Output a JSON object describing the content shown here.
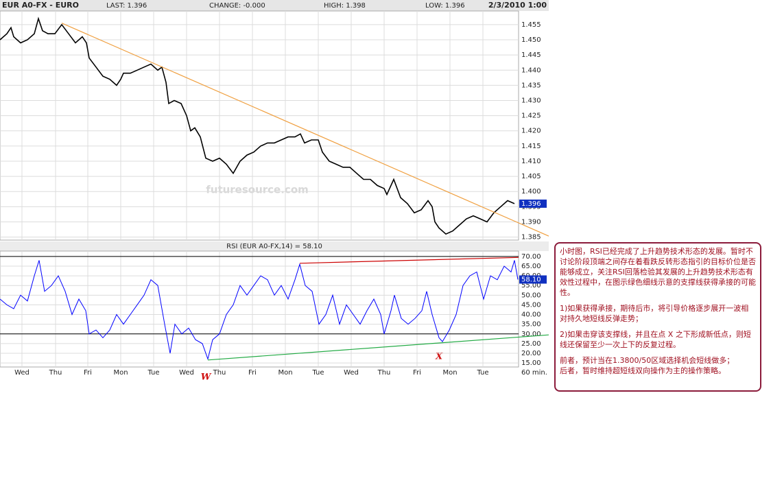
{
  "header": {
    "symbol": "EUR A0-FX - EURO",
    "last": "LAST: 1.396",
    "change": "CHANGE: -0.000",
    "high": "HIGH: 1.398",
    "low": "LOW: 1.396",
    "datetime": "2/3/2010 1:00"
  },
  "chart_data": [
    {
      "type": "line",
      "watermark": "futuresource.com",
      "x": [
        0,
        5,
        8,
        10,
        15,
        20,
        25,
        28,
        31,
        35,
        40,
        45,
        50,
        55,
        60,
        63,
        65,
        70,
        75,
        80,
        85,
        88,
        90,
        95,
        100,
        105,
        110,
        115,
        118,
        121,
        123,
        127,
        132,
        136,
        139,
        142,
        146,
        150,
        155,
        160,
        165,
        170,
        175,
        180,
        185,
        190,
        195,
        200,
        205,
        210,
        215,
        219,
        222,
        227,
        232,
        235,
        240,
        245,
        250,
        255,
        260,
        265,
        270,
        275,
        280,
        282,
        287,
        292,
        297,
        302,
        307,
        312,
        315,
        317,
        320,
        325,
        330,
        335,
        340,
        345,
        350,
        355,
        360,
        365,
        370,
        375
      ],
      "series": [
        {
          "color": "#000000",
          "values": [
            1.45,
            1.452,
            1.454,
            1.451,
            1.449,
            1.45,
            1.452,
            1.457,
            1.453,
            1.452,
            1.452,
            1.455,
            1.452,
            1.449,
            1.451,
            1.449,
            1.444,
            1.441,
            1.438,
            1.437,
            1.435,
            1.437,
            1.439,
            1.439,
            1.44,
            1.441,
            1.442,
            1.44,
            1.441,
            1.436,
            1.429,
            1.43,
            1.429,
            1.425,
            1.42,
            1.421,
            1.418,
            1.411,
            1.41,
            1.411,
            1.409,
            1.406,
            1.41,
            1.412,
            1.413,
            1.415,
            1.416,
            1.416,
            1.417,
            1.418,
            1.418,
            1.419,
            1.416,
            1.417,
            1.417,
            1.413,
            1.41,
            1.409,
            1.408,
            1.408,
            1.406,
            1.404,
            1.404,
            1.402,
            1.401,
            1.399,
            1.404,
            1.398,
            1.396,
            1.393,
            1.394,
            1.397,
            1.395,
            1.39,
            1.388,
            1.386,
            1.387,
            1.389,
            1.391,
            1.392,
            1.391,
            1.39,
            1.393,
            1.395,
            1.397,
            1.396
          ]
        }
      ],
      "last_value": 1.396,
      "xlim": [
        0,
        378
      ],
      "ylim": [
        1.384,
        1.4595
      ],
      "yticks": [
        1.385,
        {
          "value": 1.39,
          "label": "1.390"
        },
        1.395,
        {
          "value": 1.4,
          "label": "1.400"
        },
        1.405,
        {
          "value": 1.41,
          "label": "1.410"
        },
        1.415,
        {
          "value": 1.42,
          "label": "1.420"
        },
        1.425,
        {
          "value": 1.43,
          "label": "1.430"
        },
        1.435,
        {
          "value": 1.44,
          "label": "1.440"
        },
        1.445,
        {
          "value": 1.45,
          "label": "1.450"
        },
        1.455
      ],
      "grid": true,
      "trendlines": [
        {
          "color": "#f0a040",
          "x": [
            45,
            400
          ],
          "y": [
            1.4555,
            1.3853
          ]
        }
      ]
    },
    {
      "type": "line",
      "title": "RSI (EUR A0-FX,14) = 58.10",
      "x": [
        0,
        5,
        10,
        15,
        20,
        25,
        28.5,
        32.5,
        37.5,
        42.5,
        47.5,
        52.5,
        57.5,
        62.5,
        65,
        70,
        75,
        80,
        85,
        90,
        95,
        100,
        105,
        110,
        115,
        120,
        124,
        127.5,
        132.5,
        137.5,
        142.5,
        147.5,
        151.5,
        155,
        160,
        165,
        170,
        175,
        180,
        185,
        190,
        195,
        200,
        205,
        210,
        215,
        218.5,
        222.5,
        227.5,
        232.5,
        237.5,
        242.5,
        247.5,
        252.5,
        257.5,
        262.5,
        267.5,
        272.5,
        277.5,
        280,
        285,
        287.5,
        292.5,
        297.5,
        302.5,
        307.5,
        311,
        315,
        320,
        322.5,
        327.5,
        332.5,
        337.5,
        342.5,
        347.5,
        352.5,
        357.5,
        362.5,
        367.5,
        372.5,
        375,
        377.5
      ],
      "series": [
        {
          "color": "#0000ff",
          "values": [
            48,
            45,
            43,
            50,
            47,
            60,
            68,
            52,
            55,
            60,
            52,
            40,
            48,
            42,
            30,
            32,
            28,
            32,
            40,
            35,
            40,
            45,
            50,
            58,
            55,
            35,
            20,
            35,
            30,
            33,
            27,
            25,
            17,
            27,
            30,
            40,
            45,
            55,
            50,
            55,
            60,
            58,
            50,
            55,
            48,
            58,
            66,
            55,
            52,
            35,
            40,
            50,
            35,
            45,
            40,
            35,
            42,
            48,
            40,
            30,
            42,
            50,
            38,
            35,
            38,
            42,
            52,
            40,
            28,
            26,
            32,
            40,
            55,
            60,
            62,
            48,
            60,
            58,
            65,
            62,
            68,
            58.1
          ]
        }
      ],
      "last_value": {
        "value": 58.1,
        "label": "58.10"
      },
      "xlim": [
        0,
        378
      ],
      "ylim": [
        12.9,
        72.8
      ],
      "yticks": [
        {
          "value": 15,
          "label": "15.00"
        },
        {
          "value": 20,
          "label": "20.00"
        },
        {
          "value": 25,
          "label": "25.00"
        },
        {
          "value": 30,
          "label": "30.00"
        },
        {
          "value": 35,
          "label": "35.00"
        },
        {
          "value": 40,
          "label": "40.00"
        },
        {
          "value": 45,
          "label": "45.00"
        },
        {
          "value": 50,
          "label": "50.00"
        },
        {
          "value": 55,
          "label": "55.00"
        },
        {
          "value": 60,
          "label": "60.00"
        },
        {
          "value": 65,
          "label": "65.00"
        },
        {
          "value": 70,
          "label": "70.00"
        }
      ],
      "xticks": [
        {
          "value": 16,
          "label": "Wed"
        },
        {
          "value": 40.5,
          "label": "Thu"
        },
        {
          "value": 64,
          "label": "Fri"
        },
        {
          "value": 88,
          "label": "Mon"
        },
        {
          "value": 112,
          "label": "Tue"
        },
        {
          "value": 136,
          "label": "Wed"
        },
        {
          "value": 160,
          "label": "Thu"
        },
        {
          "value": 184,
          "label": "Fri"
        },
        {
          "value": 208,
          "label": "Mon"
        },
        {
          "value": 232,
          "label": "Tue"
        },
        {
          "value": 256,
          "label": "Wed"
        },
        {
          "value": 280,
          "label": "Thu"
        },
        {
          "value": 304,
          "label": "Fri"
        },
        {
          "value": 328,
          "label": "Mon"
        },
        {
          "value": 352,
          "label": "Tue"
        }
      ],
      "x_unit_label": "60 min.",
      "reference_lines": [
        30,
        70
      ],
      "grid": true,
      "trendlines": [
        {
          "color": "#cc0000",
          "x": [
            218.5,
            378
          ],
          "y": [
            66.5,
            69.5
          ]
        },
        {
          "color": "#22aa44",
          "x": [
            151.5,
            400
          ],
          "y": [
            16.5,
            29.5
          ]
        }
      ]
    }
  ],
  "markers": [
    "W",
    "X"
  ],
  "note": {
    "paragraphs": [
      "小时图，RSI已经完成了上升趋势技术形态的发展。暂时不讨论阶段顶端之间存在着看跌反转形态指引的目标价位是否能够成立，关注RSI回落检验其发展的上升趋势技术形态有效性过程中，在图示绿色细线示意的支撑线获得承接的可能性。",
      "1)如果获得承接，期待后市，将引导价格逐步展开一波相对持久地短线反弹走势；",
      "2)如果击穿该支撑线，并且在点 X 之下形成新低点，则短线还保留至少一次上下的反复过程。",
      "前者，预计当在1.3800/50区域选择机会短线做多；",
      "后者，暂时维持超短线双向操作为主的操作策略。"
    ]
  }
}
